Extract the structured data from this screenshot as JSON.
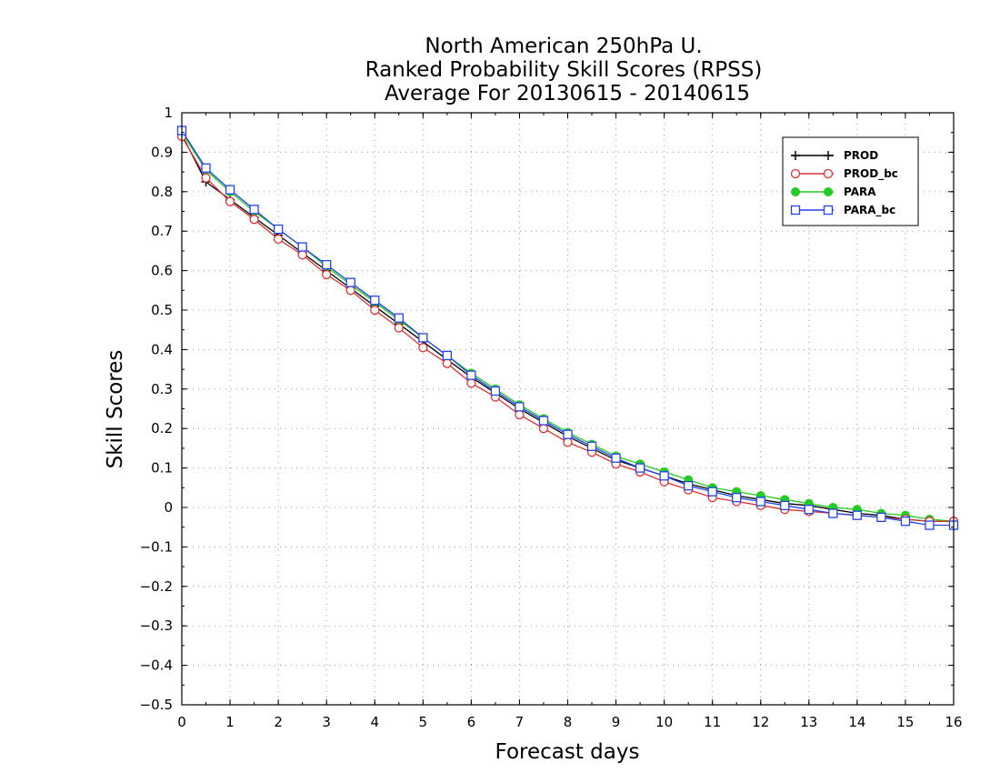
{
  "chart_data": {
    "type": "line",
    "title": [
      "North American 250hPa U.",
      "Ranked Probability Skill Scores (RPSS)",
      "Average For 20130615 - 20140615"
    ],
    "xlabel": "Forecast days",
    "ylabel": "Skill Scores",
    "xlim": [
      0,
      16
    ],
    "ylim": [
      -0.5,
      1
    ],
    "xticks": [
      "0",
      "1",
      "2",
      "3",
      "4",
      "5",
      "6",
      "7",
      "8",
      "9",
      "10",
      "11",
      "12",
      "13",
      "14",
      "15",
      "16"
    ],
    "yticks": [
      "1",
      "0.9",
      "0.8",
      "0.7",
      "0.6",
      "0.5",
      "0.4",
      "0.3",
      "0.2",
      "0.1",
      "0",
      "−0.1",
      "−0.2",
      "−0.3",
      "−0.4",
      "−0.5"
    ],
    "grid": true,
    "legend_position": "top-right",
    "x": [
      0,
      0.5,
      1,
      1.5,
      2,
      2.5,
      3,
      3.5,
      4,
      4.5,
      5,
      5.5,
      6,
      6.5,
      7,
      7.5,
      8,
      8.5,
      9,
      9.5,
      10,
      10.5,
      11,
      11.5,
      12,
      12.5,
      13,
      13.5,
      14,
      14.5,
      15,
      15.5,
      16
    ],
    "series": [
      {
        "name": "PROD",
        "color": "#000000",
        "marker": "plus",
        "values": [
          0.945,
          0.825,
          0.78,
          0.735,
          0.69,
          0.645,
          0.6,
          0.555,
          0.51,
          0.465,
          0.42,
          0.375,
          0.33,
          0.29,
          0.25,
          0.215,
          0.18,
          0.15,
          0.12,
          0.1,
          0.08,
          0.06,
          0.045,
          0.03,
          0.02,
          0.01,
          0.005,
          -0.005,
          -0.015,
          -0.02,
          -0.03,
          -0.035,
          -0.035
        ]
      },
      {
        "name": "PROD_bc",
        "color": "#e03030",
        "marker": "circle",
        "values": [
          0.94,
          0.835,
          0.775,
          0.73,
          0.68,
          0.64,
          0.59,
          0.55,
          0.5,
          0.455,
          0.405,
          0.365,
          0.315,
          0.28,
          0.235,
          0.2,
          0.165,
          0.14,
          0.11,
          0.09,
          0.065,
          0.045,
          0.025,
          0.015,
          0.005,
          -0.005,
          -0.01,
          -0.015,
          -0.02,
          -0.025,
          -0.03,
          -0.035,
          -0.035
        ]
      },
      {
        "name": "PARA",
        "color": "#22cc22",
        "marker": "filled-circle",
        "values": [
          0.95,
          0.855,
          0.8,
          0.75,
          0.705,
          0.66,
          0.61,
          0.565,
          0.52,
          0.475,
          0.43,
          0.385,
          0.34,
          0.3,
          0.26,
          0.225,
          0.19,
          0.16,
          0.13,
          0.11,
          0.09,
          0.07,
          0.05,
          0.04,
          0.03,
          0.02,
          0.01,
          0.0,
          -0.005,
          -0.015,
          -0.02,
          -0.03,
          -0.035
        ]
      },
      {
        "name": "PARA_bc",
        "color": "#2244ee",
        "marker": "square",
        "values": [
          0.955,
          0.86,
          0.805,
          0.755,
          0.705,
          0.66,
          0.615,
          0.57,
          0.525,
          0.48,
          0.43,
          0.385,
          0.335,
          0.295,
          0.255,
          0.22,
          0.185,
          0.155,
          0.125,
          0.1,
          0.08,
          0.055,
          0.04,
          0.025,
          0.015,
          0.005,
          -0.005,
          -0.015,
          -0.02,
          -0.025,
          -0.035,
          -0.045,
          -0.045
        ]
      }
    ]
  }
}
